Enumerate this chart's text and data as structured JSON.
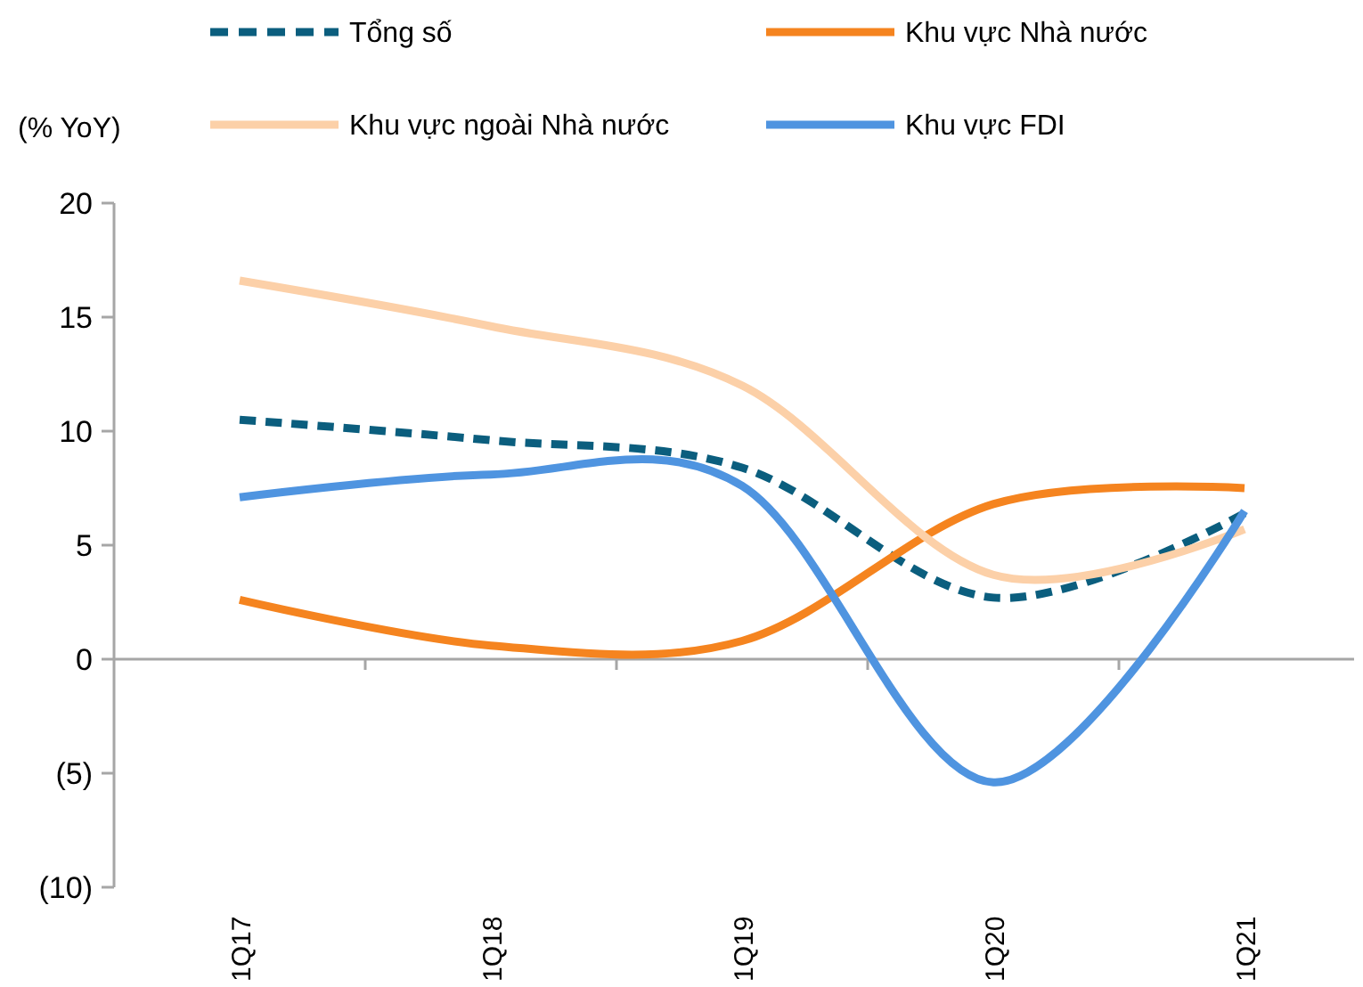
{
  "chart_data": {
    "type": "line",
    "ylabel": "(% YoY)",
    "categories": [
      "1Q17",
      "1Q18",
      "1Q19",
      "1Q20",
      "1Q21"
    ],
    "series": [
      {
        "name": "Tổng số",
        "color": "#0b5e7e",
        "line_style": "dashed",
        "values": [
          10.5,
          9.6,
          8.4,
          2.7,
          6.4
        ]
      },
      {
        "name": "Khu vực Nhà nước",
        "color": "#f5841f",
        "line_style": "solid",
        "values": [
          2.6,
          0.6,
          0.8,
          6.8,
          7.5
        ]
      },
      {
        "name": "Khu vực ngoài Nhà nước",
        "color": "#fcd0a8",
        "line_style": "solid",
        "values": [
          16.6,
          14.6,
          12.0,
          3.7,
          5.7
        ]
      },
      {
        "name": "Khu vực FDI",
        "color": "#4f94e0",
        "line_style": "solid",
        "values": [
          7.1,
          8.1,
          7.6,
          -5.4,
          6.5
        ]
      }
    ],
    "ylim": [
      -10,
      20
    ],
    "yticks": [
      {
        "value": -10,
        "label": "(10)"
      },
      {
        "value": -5,
        "label": "(5)"
      },
      0,
      5,
      10,
      15,
      20
    ],
    "legend": "top",
    "marker": "none"
  }
}
